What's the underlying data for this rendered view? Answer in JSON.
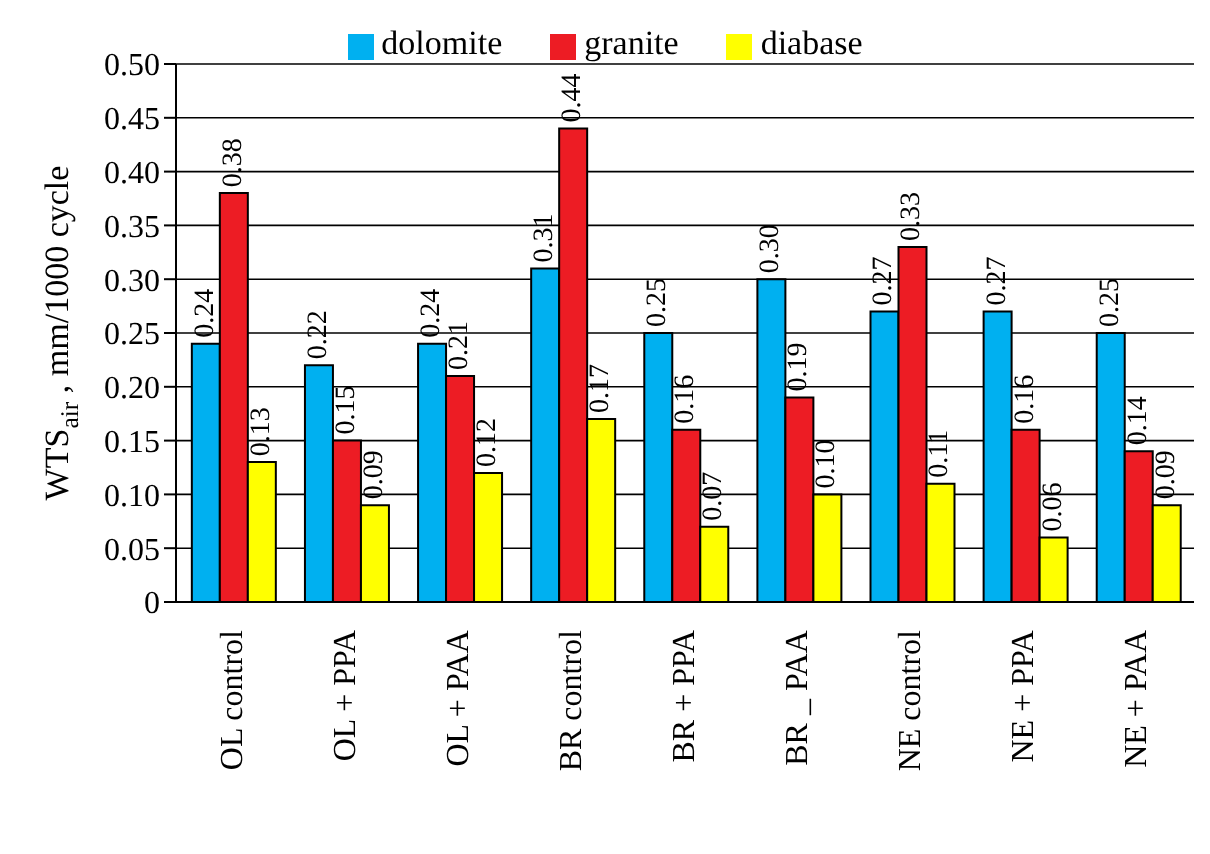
{
  "chart_data": {
    "type": "bar",
    "ylabel": "WTS$_{air}$ , mm/1000 cycle",
    "categories": [
      "OL control",
      "OL + PPA",
      "OL + PAA",
      "BR control",
      "BR + PPA",
      "BR _ PAA",
      "NE control",
      "NE + PPA",
      "NE + PAA"
    ],
    "series": [
      {
        "name": "dolomite",
        "color": "#00b0f0",
        "values": [
          0.24,
          0.22,
          0.24,
          0.31,
          0.25,
          0.3,
          0.27,
          0.27,
          0.25
        ],
        "value_labels": [
          "0.24",
          "0.22",
          "0.24",
          "0.31",
          "0.25",
          "0.30",
          "0.27",
          "0.27",
          "0.25"
        ]
      },
      {
        "name": "granite",
        "color": "#ed1c24",
        "values": [
          0.38,
          0.15,
          0.21,
          0.44,
          0.16,
          0.19,
          0.33,
          0.16,
          0.14
        ],
        "value_labels": [
          "0.38",
          "0.15",
          "0.21",
          "0.44",
          "0.16",
          "0.19",
          "0.33",
          "0.16",
          "0.14"
        ]
      },
      {
        "name": "diabase",
        "color": "#ffff00",
        "values": [
          0.13,
          0.09,
          0.12,
          0.17,
          0.07,
          0.1,
          0.11,
          0.06,
          0.09
        ],
        "value_labels": [
          "0.13",
          "0.09",
          "0.12",
          "0.17",
          "0.07",
          "0.10",
          "0.11",
          "0.06",
          "0.09"
        ]
      }
    ],
    "ylim": [
      0,
      0.5
    ],
    "yticks": [
      0,
      0.05,
      {
        "value": 0.1,
        "label": "0.10"
      },
      0.15,
      {
        "value": 0.2,
        "label": "0.20"
      },
      0.25,
      {
        "value": 0.3,
        "label": "0.30"
      },
      0.35,
      {
        "value": 0.4,
        "label": "0.40"
      },
      0.45,
      {
        "value": 0.5,
        "label": "0.50"
      }
    ],
    "grid": "y",
    "legend": "top"
  }
}
